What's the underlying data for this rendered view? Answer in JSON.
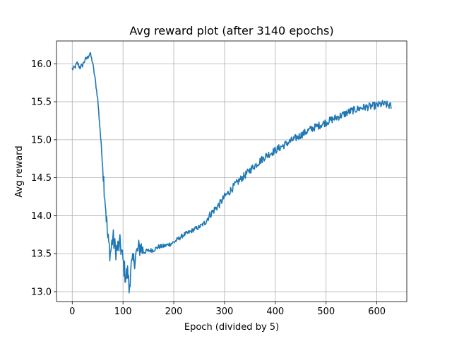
{
  "chart_data": {
    "type": "line",
    "title": "Avg reward plot (after 3140 epochs)",
    "xlabel": "Epoch (divided by 5)",
    "ylabel": "Avg reward",
    "xlim": [
      -31,
      659
    ],
    "ylim": [
      12.87,
      16.3
    ],
    "grid": true,
    "legend": "none",
    "x_ticks": [
      0,
      100,
      200,
      300,
      400,
      500,
      600
    ],
    "x_tick_labels": [
      "0",
      "100",
      "200",
      "300",
      "400",
      "500",
      "600"
    ],
    "y_ticks": [
      13.0,
      13.5,
      14.0,
      14.5,
      15.0,
      15.5,
      16.0
    ],
    "y_tick_labels": [
      "13.0",
      "13.5",
      "14.0",
      "14.5",
      "15.0",
      "15.5",
      "16.0"
    ],
    "series": [
      {
        "color": "#1f77b4",
        "keypoints": [
          [
            0,
            15.93
          ],
          [
            5,
            15.95
          ],
          [
            10,
            16.01
          ],
          [
            15,
            15.95
          ],
          [
            20,
            15.98
          ],
          [
            25,
            16.05
          ],
          [
            30,
            16.08
          ],
          [
            35,
            16.14
          ],
          [
            40,
            16.02
          ],
          [
            45,
            15.8
          ],
          [
            50,
            15.55
          ],
          [
            55,
            15.12
          ],
          [
            60,
            14.65
          ],
          [
            65,
            14.2
          ],
          [
            70,
            13.7
          ],
          [
            75,
            13.5
          ],
          [
            80,
            13.72
          ],
          [
            85,
            13.55
          ],
          [
            90,
            13.58
          ],
          [
            95,
            13.62
          ],
          [
            100,
            13.4
          ],
          [
            105,
            13.2
          ],
          [
            110,
            13.25
          ],
          [
            112,
            13.01
          ],
          [
            115,
            13.3
          ],
          [
            120,
            13.38
          ],
          [
            125,
            13.48
          ],
          [
            130,
            13.55
          ],
          [
            135,
            13.6
          ],
          [
            140,
            13.52
          ],
          [
            150,
            13.54
          ],
          [
            160,
            13.55
          ],
          [
            170,
            13.59
          ],
          [
            180,
            13.6
          ],
          [
            190,
            13.62
          ],
          [
            200,
            13.65
          ],
          [
            210,
            13.7
          ],
          [
            220,
            13.75
          ],
          [
            230,
            13.78
          ],
          [
            240,
            13.82
          ],
          [
            250,
            13.85
          ],
          [
            260,
            13.9
          ],
          [
            270,
            14.0
          ],
          [
            280,
            14.08
          ],
          [
            290,
            14.15
          ],
          [
            300,
            14.25
          ],
          [
            310,
            14.32
          ],
          [
            320,
            14.4
          ],
          [
            330,
            14.47
          ],
          [
            340,
            14.53
          ],
          [
            350,
            14.6
          ],
          [
            360,
            14.66
          ],
          [
            370,
            14.72
          ],
          [
            380,
            14.78
          ],
          [
            390,
            14.82
          ],
          [
            400,
            14.86
          ],
          [
            410,
            14.9
          ],
          [
            420,
            14.94
          ],
          [
            430,
            14.98
          ],
          [
            440,
            15.02
          ],
          [
            450,
            15.06
          ],
          [
            460,
            15.1
          ],
          [
            470,
            15.14
          ],
          [
            480,
            15.17
          ],
          [
            490,
            15.2
          ],
          [
            500,
            15.23
          ],
          [
            510,
            15.26
          ],
          [
            520,
            15.29
          ],
          [
            530,
            15.32
          ],
          [
            540,
            15.35
          ],
          [
            550,
            15.38
          ],
          [
            560,
            15.4
          ],
          [
            570,
            15.42
          ],
          [
            580,
            15.43
          ],
          [
            590,
            15.44
          ],
          [
            600,
            15.45
          ],
          [
            610,
            15.47
          ],
          [
            620,
            15.46
          ],
          [
            628,
            15.44
          ]
        ]
      }
    ]
  }
}
